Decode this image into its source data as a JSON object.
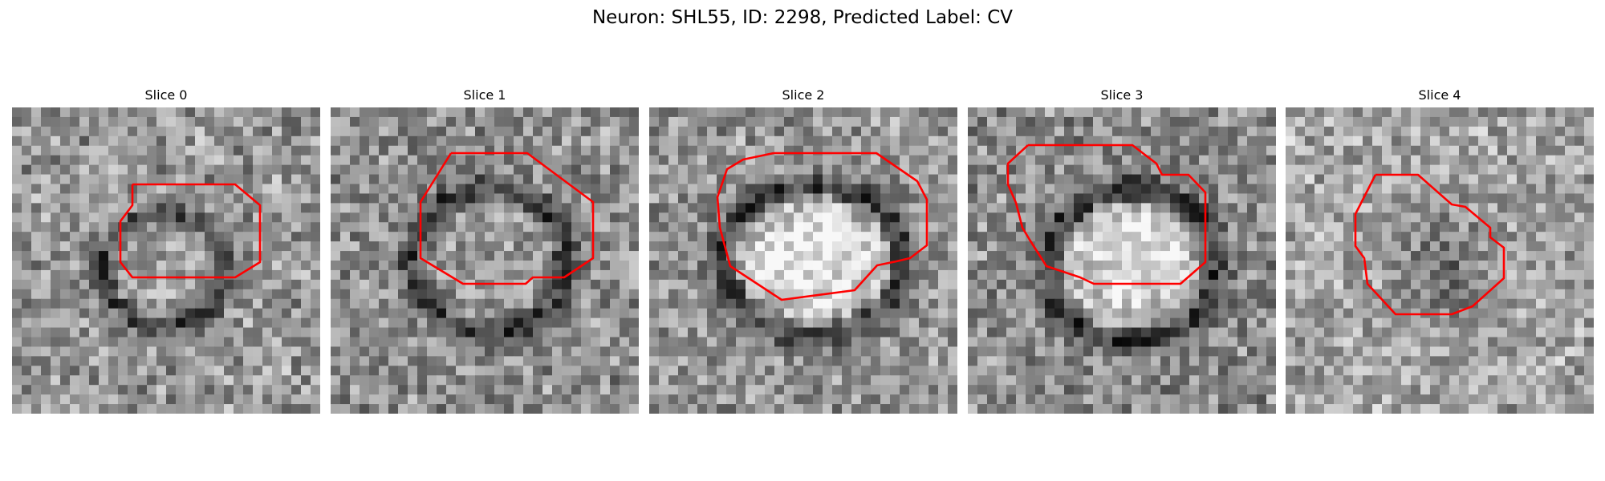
{
  "figure": {
    "title": "Neuron: SHL55, ID: 2298, Predicted Label: CV"
  },
  "colors": {
    "contour": "#ff0000",
    "background": "#ffffff"
  },
  "panels": [
    {
      "title": "Slice 0"
    },
    {
      "title": "Slice 1"
    },
    {
      "title": "Slice 2"
    },
    {
      "title": "Slice 3"
    },
    {
      "title": "Slice 4"
    }
  ]
}
